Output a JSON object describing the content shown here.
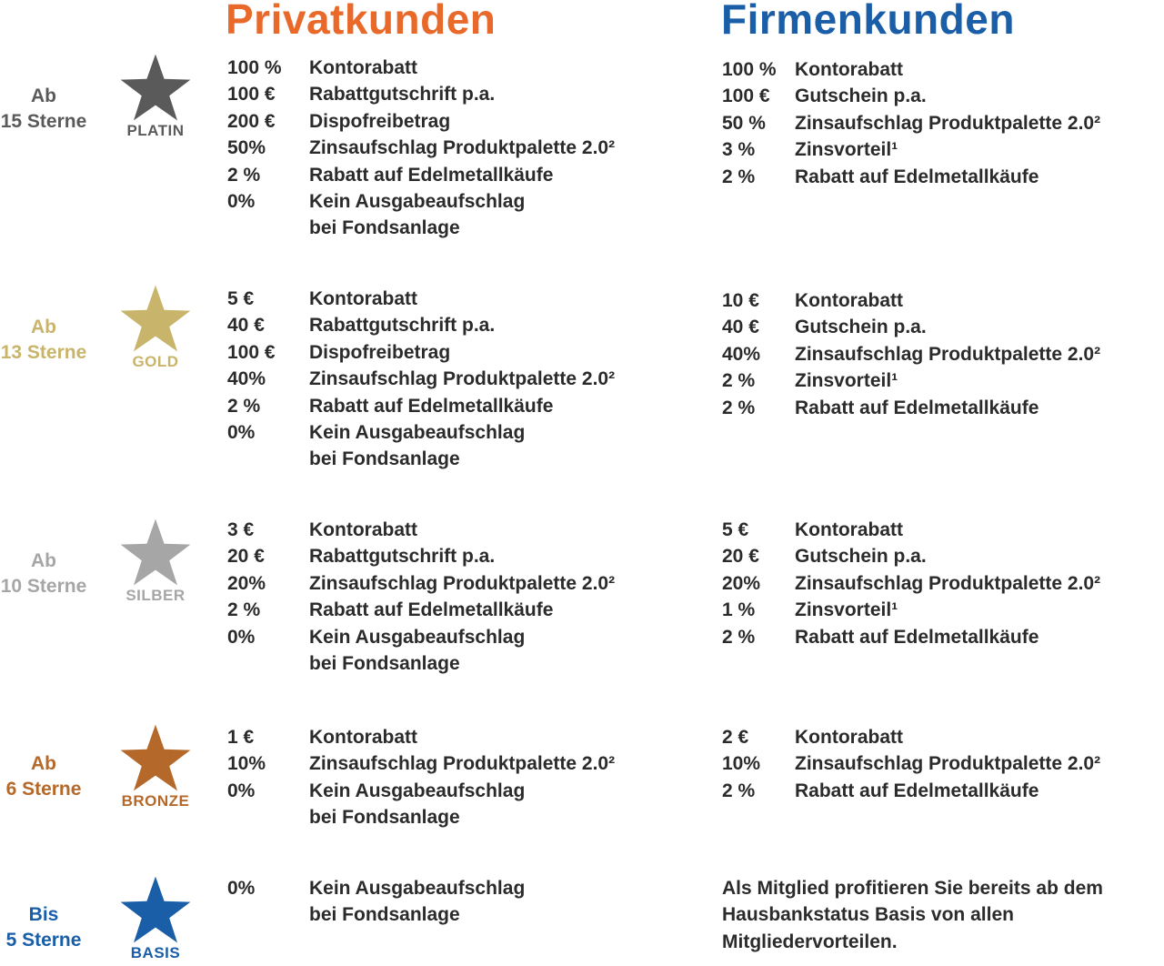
{
  "headings": {
    "private": "Privatkunden",
    "business": "Firmenkunden"
  },
  "colors": {
    "private_heading": "#e8692a",
    "business_heading": "#1a5ea8",
    "body_text": "#2b2b2b"
  },
  "tiers": [
    {
      "level_line1": "Ab",
      "level_line2": "15 Sterne",
      "name": "PLATIN",
      "color": "#5a5a5a",
      "star_icon": "star-icon",
      "private": [
        {
          "value": "100 %",
          "text": "Kontorabatt"
        },
        {
          "value": "100 €",
          "text": "Rabattgutschrift p.a."
        },
        {
          "value": "200 €",
          "text": "Dispofreibetrag"
        },
        {
          "value": "50%",
          "text": "Zinsaufschlag Produktpalette 2.0²"
        },
        {
          "value": "2 %",
          "text": "Rabatt auf Edelmetallkäufe"
        },
        {
          "value": "0%",
          "text": "Kein Ausgabeaufschlag\nbei Fondsanlage"
        }
      ],
      "business": [
        {
          "value": "100 %",
          "text": "Kontorabatt"
        },
        {
          "value": "100 €",
          "text": "Gutschein p.a."
        },
        {
          "value": "50 %",
          "text": "Zinsaufschlag Produktpalette 2.0²"
        },
        {
          "value": "3 %",
          "text": "Zinsvorteil¹"
        },
        {
          "value": "2 %",
          "text": "Rabatt auf Edelmetallkäufe"
        }
      ]
    },
    {
      "level_line1": "Ab",
      "level_line2": "13 Sterne",
      "name": "GOLD",
      "color": "#c8b46a",
      "star_icon": "star-icon",
      "private": [
        {
          "value": "5 €",
          "text": "Kontorabatt"
        },
        {
          "value": "40 €",
          "text": "Rabattgutschrift p.a."
        },
        {
          "value": "100 €",
          "text": "Dispofreibetrag"
        },
        {
          "value": "40%",
          "text": "Zinsaufschlag Produktpalette 2.0²"
        },
        {
          "value": "2 %",
          "text": "Rabatt auf Edelmetallkäufe"
        },
        {
          "value": "0%",
          "text": "Kein Ausgabeaufschlag\nbei Fondsanlage"
        }
      ],
      "business": [
        {
          "value": "10 €",
          "text": "Kontorabatt"
        },
        {
          "value": "40 €",
          "text": "Gutschein p.a."
        },
        {
          "value": "40%",
          "text": "Zinsaufschlag Produktpalette 2.0²"
        },
        {
          "value": "2 %",
          "text": "Zinsvorteil¹"
        },
        {
          "value": "2 %",
          "text": "Rabatt auf Edelmetallkäufe"
        }
      ]
    },
    {
      "level_line1": "Ab",
      "level_line2": "10 Sterne",
      "name": "SILBER",
      "color": "#a6a6a6",
      "star_icon": "star-icon",
      "private": [
        {
          "value": "3 €",
          "text": "Kontorabatt"
        },
        {
          "value": "20 €",
          "text": "Rabattgutschrift p.a."
        },
        {
          "value": "20%",
          "text": "Zinsaufschlag Produktpalette 2.0²"
        },
        {
          "value": "2 %",
          "text": "Rabatt auf Edelmetallkäufe"
        },
        {
          "value": "0%",
          "text": "Kein Ausgabeaufschlag\nbei Fondsanlage"
        }
      ],
      "business": [
        {
          "value": "5 €",
          "text": "Kontorabatt"
        },
        {
          "value": "20 €",
          "text": "Gutschein p.a."
        },
        {
          "value": "20%",
          "text": "Zinsaufschlag Produktpalette 2.0²"
        },
        {
          "value": "1 %",
          "text": "Zinsvorteil¹"
        },
        {
          "value": "2 %",
          "text": "Rabatt auf Edelmetallkäufe"
        }
      ]
    },
    {
      "level_line1": "Ab",
      "level_line2": "6 Sterne",
      "name": "BRONZE",
      "color": "#b4692a",
      "star_icon": "star-icon",
      "private": [
        {
          "value": "1 €",
          "text": "Kontorabatt"
        },
        {
          "value": "10%",
          "text": "Zinsaufschlag Produktpalette 2.0²"
        },
        {
          "value": "0%",
          "text": "Kein Ausgabeaufschlag\nbei Fondsanlage"
        }
      ],
      "business": [
        {
          "value": "2 €",
          "text": "Kontorabatt"
        },
        {
          "value": "10%",
          "text": "Zinsaufschlag Produktpalette 2.0²"
        },
        {
          "value": "2 %",
          "text": "Rabatt auf Edelmetallkäufe"
        }
      ]
    },
    {
      "level_line1": "Bis",
      "level_line2": "5 Sterne",
      "name": "BASIS",
      "color": "#1a5ea8",
      "star_icon": "star-icon",
      "private": [
        {
          "value": "0%",
          "text": "Kein Ausgabeaufschlag\nbei Fondsanlage"
        }
      ],
      "business_note": "Als Mitglied profitieren Sie bereits ab dem Hausbankstatus Basis von allen Mitgliedervorteilen."
    }
  ]
}
